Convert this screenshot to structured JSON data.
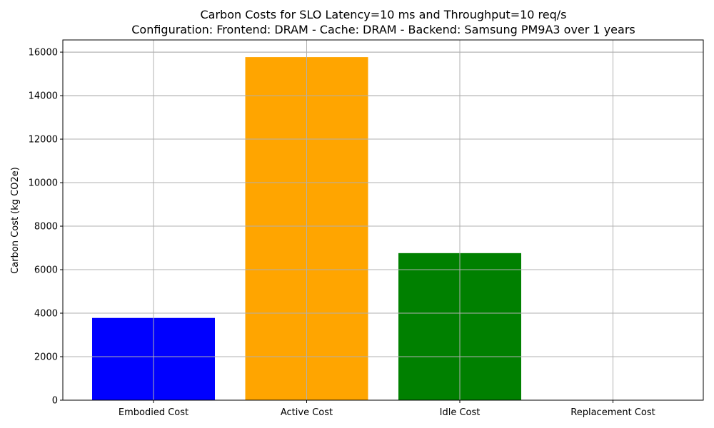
{
  "chart_data": {
    "type": "bar",
    "title": "Carbon Costs for SLO Latency=10 ms and Throughput=10 req/s",
    "subtitle": "Configuration: Frontend: DRAM - Cache: DRAM - Backend: Samsung PM9A3 over 1 years",
    "xlabel": "",
    "ylabel": "Carbon Cost (kg CO2e)",
    "categories": [
      "Embodied Cost",
      "Active Cost",
      "Idle Cost",
      "Replacement Cost"
    ],
    "values": [
      3780,
      15770,
      6760,
      0
    ],
    "colors": [
      "#0000ff",
      "#ffa500",
      "#008000",
      "#ff0000"
    ],
    "ylim": [
      0,
      16560
    ],
    "yticks": [
      0,
      2000,
      4000,
      6000,
      8000,
      10000,
      12000,
      14000,
      16000
    ],
    "ytick_labels": [
      "0",
      "2000",
      "4000",
      "6000",
      "8000",
      "10000",
      "12000",
      "14000",
      "16000"
    ],
    "grid": true
  }
}
